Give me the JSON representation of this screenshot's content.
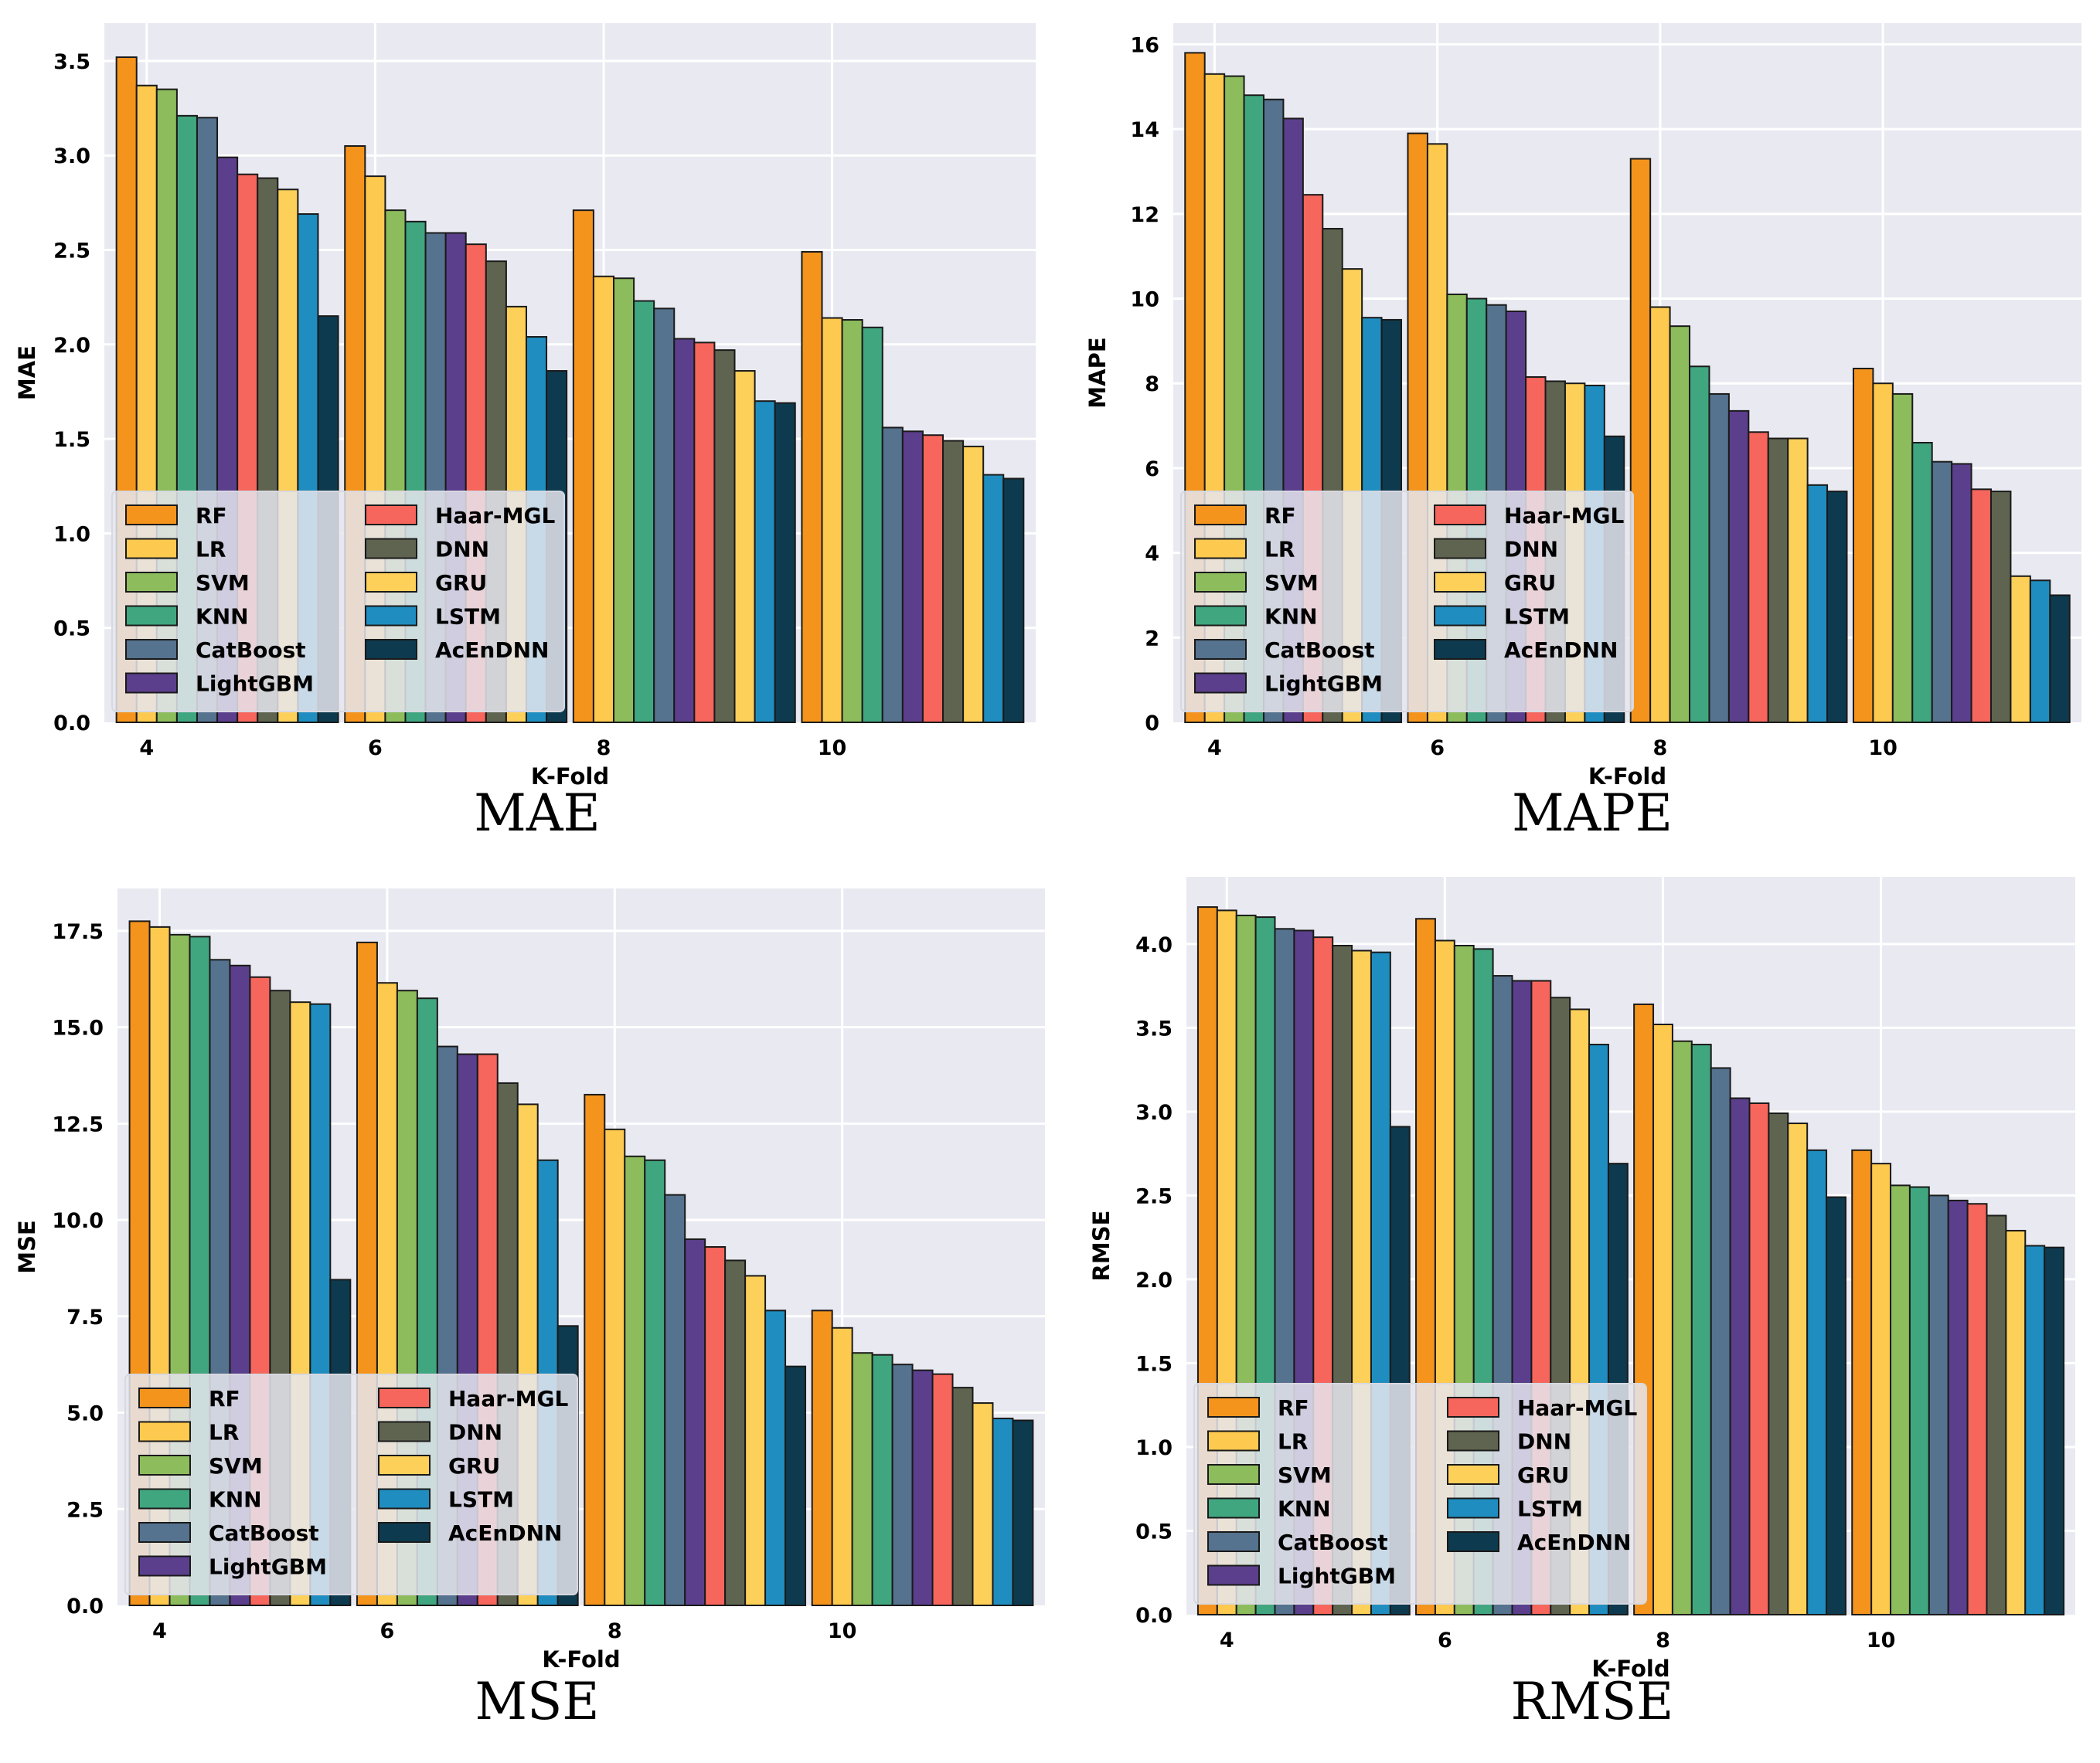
{
  "palette": {
    "plot_bg": "#e9e9f1",
    "grid": "#ffffff",
    "bar_edge": "#1a1a1a",
    "legend_bg": "#e6e6ee",
    "text": "#000000",
    "series_colors": [
      "#f4941c",
      "#fdc94e",
      "#8cbc5c",
      "#40a680",
      "#55728f",
      "#5b3f8c",
      "#f6665c",
      "#5f6450",
      "#fdd05a",
      "#1f8dbf",
      "#0d3a4e"
    ]
  },
  "chart_data": [
    {
      "type": "bar",
      "title": "MAE",
      "xlabel": "K-Fold",
      "ylabel": "MAE",
      "grid": true,
      "legend_position": "lower-left",
      "categories": [
        "4",
        "6",
        "8",
        "10"
      ],
      "ylim": [
        0,
        3.7
      ],
      "yticks": [
        "0.0",
        "0.5",
        "1.0",
        "1.5",
        "2.0",
        "2.5",
        "3.0",
        "3.5"
      ],
      "series": [
        {
          "name": "RF",
          "values": [
            3.52,
            3.05,
            2.71,
            2.49
          ]
        },
        {
          "name": "LR",
          "values": [
            3.37,
            2.89,
            2.36,
            2.14
          ]
        },
        {
          "name": "SVM",
          "values": [
            3.35,
            2.71,
            2.35,
            2.13
          ]
        },
        {
          "name": "KNN",
          "values": [
            3.21,
            2.65,
            2.23,
            2.09
          ]
        },
        {
          "name": "CatBoost",
          "values": [
            3.2,
            2.59,
            2.19,
            1.56
          ]
        },
        {
          "name": "LightGBM",
          "values": [
            2.99,
            2.59,
            2.03,
            1.54
          ]
        },
        {
          "name": "Haar-MGL",
          "values": [
            2.9,
            2.53,
            2.01,
            1.52
          ]
        },
        {
          "name": "DNN",
          "values": [
            2.88,
            2.44,
            1.97,
            1.49
          ]
        },
        {
          "name": "GRU",
          "values": [
            2.82,
            2.2,
            1.86,
            1.46
          ]
        },
        {
          "name": "LSTM",
          "values": [
            2.69,
            2.04,
            1.7,
            1.31
          ]
        },
        {
          "name": "AcEnDNN",
          "values": [
            2.15,
            1.86,
            1.69,
            1.29
          ]
        }
      ]
    },
    {
      "type": "bar",
      "title": "MAPE",
      "xlabel": "K-Fold",
      "ylabel": "MAPE",
      "grid": true,
      "legend_position": "lower-left",
      "categories": [
        "4",
        "6",
        "8",
        "10"
      ],
      "ylim": [
        0,
        16.5
      ],
      "yticks": [
        "0",
        "2",
        "4",
        "6",
        "8",
        "10",
        "12",
        "14",
        "16"
      ],
      "series": [
        {
          "name": "RF",
          "values": [
            15.8,
            13.9,
            13.3,
            8.35
          ]
        },
        {
          "name": "LR",
          "values": [
            15.3,
            13.65,
            9.8,
            8.0
          ]
        },
        {
          "name": "SVM",
          "values": [
            15.25,
            10.1,
            9.35,
            7.75
          ]
        },
        {
          "name": "KNN",
          "values": [
            14.8,
            10.0,
            8.4,
            6.6
          ]
        },
        {
          "name": "CatBoost",
          "values": [
            14.7,
            9.85,
            7.75,
            6.15
          ]
        },
        {
          "name": "LightGBM",
          "values": [
            14.25,
            9.7,
            7.35,
            6.1
          ]
        },
        {
          "name": "Haar-MGL",
          "values": [
            12.45,
            8.15,
            6.85,
            5.5
          ]
        },
        {
          "name": "DNN",
          "values": [
            11.65,
            8.05,
            6.7,
            5.45
          ]
        },
        {
          "name": "GRU",
          "values": [
            10.7,
            8.0,
            6.7,
            3.45
          ]
        },
        {
          "name": "LSTM",
          "values": [
            9.55,
            7.95,
            5.6,
            3.35
          ]
        },
        {
          "name": "AcEnDNN",
          "values": [
            9.5,
            6.75,
            5.45,
            3.0
          ]
        }
      ]
    },
    {
      "type": "bar",
      "title": "MSE",
      "xlabel": "K-Fold",
      "ylabel": "MSE",
      "grid": true,
      "legend_position": "lower-left",
      "categories": [
        "4",
        "6",
        "8",
        "10"
      ],
      "ylim": [
        0,
        18.6
      ],
      "yticks": [
        "0.0",
        "2.5",
        "5.0",
        "7.5",
        "10.0",
        "12.5",
        "15.0",
        "17.5"
      ],
      "series": [
        {
          "name": "RF",
          "values": [
            17.75,
            17.2,
            13.25,
            7.65
          ]
        },
        {
          "name": "LR",
          "values": [
            17.6,
            16.15,
            12.35,
            7.2
          ]
        },
        {
          "name": "SVM",
          "values": [
            17.4,
            15.95,
            11.65,
            6.55
          ]
        },
        {
          "name": "KNN",
          "values": [
            17.35,
            15.75,
            11.55,
            6.5
          ]
        },
        {
          "name": "CatBoost",
          "values": [
            16.75,
            14.5,
            10.65,
            6.25
          ]
        },
        {
          "name": "LightGBM",
          "values": [
            16.6,
            14.3,
            9.5,
            6.1
          ]
        },
        {
          "name": "Haar-MGL",
          "values": [
            16.3,
            14.3,
            9.3,
            6.0
          ]
        },
        {
          "name": "DNN",
          "values": [
            15.95,
            13.55,
            8.95,
            5.65
          ]
        },
        {
          "name": "GRU",
          "values": [
            15.65,
            13.0,
            8.55,
            5.25
          ]
        },
        {
          "name": "LSTM",
          "values": [
            15.6,
            11.55,
            7.65,
            4.85
          ]
        },
        {
          "name": "AcEnDNN",
          "values": [
            8.45,
            7.25,
            6.2,
            4.8
          ]
        }
      ]
    },
    {
      "type": "bar",
      "title": "RMSE",
      "xlabel": "K-Fold",
      "ylabel": "RMSE",
      "grid": true,
      "legend_position": "lower-left",
      "categories": [
        "4",
        "6",
        "8",
        "10"
      ],
      "ylim": [
        0,
        4.4
      ],
      "yticks": [
        "0.0",
        "0.5",
        "1.0",
        "1.5",
        "2.0",
        "2.5",
        "3.0",
        "3.5",
        "4.0"
      ],
      "series": [
        {
          "name": "RF",
          "values": [
            4.22,
            4.15,
            3.64,
            2.77
          ]
        },
        {
          "name": "LR",
          "values": [
            4.2,
            4.02,
            3.52,
            2.69
          ]
        },
        {
          "name": "SVM",
          "values": [
            4.17,
            3.99,
            3.42,
            2.56
          ]
        },
        {
          "name": "KNN",
          "values": [
            4.16,
            3.97,
            3.4,
            2.55
          ]
        },
        {
          "name": "CatBoost",
          "values": [
            4.09,
            3.81,
            3.26,
            2.5
          ]
        },
        {
          "name": "LightGBM",
          "values": [
            4.08,
            3.78,
            3.08,
            2.47
          ]
        },
        {
          "name": "Haar-MGL",
          "values": [
            4.04,
            3.78,
            3.05,
            2.45
          ]
        },
        {
          "name": "DNN",
          "values": [
            3.99,
            3.68,
            2.99,
            2.38
          ]
        },
        {
          "name": "GRU",
          "values": [
            3.96,
            3.61,
            2.93,
            2.29
          ]
        },
        {
          "name": "LSTM",
          "values": [
            3.95,
            3.4,
            2.77,
            2.2
          ]
        },
        {
          "name": "AcEnDNN",
          "values": [
            2.91,
            2.69,
            2.49,
            2.19
          ]
        }
      ]
    }
  ]
}
